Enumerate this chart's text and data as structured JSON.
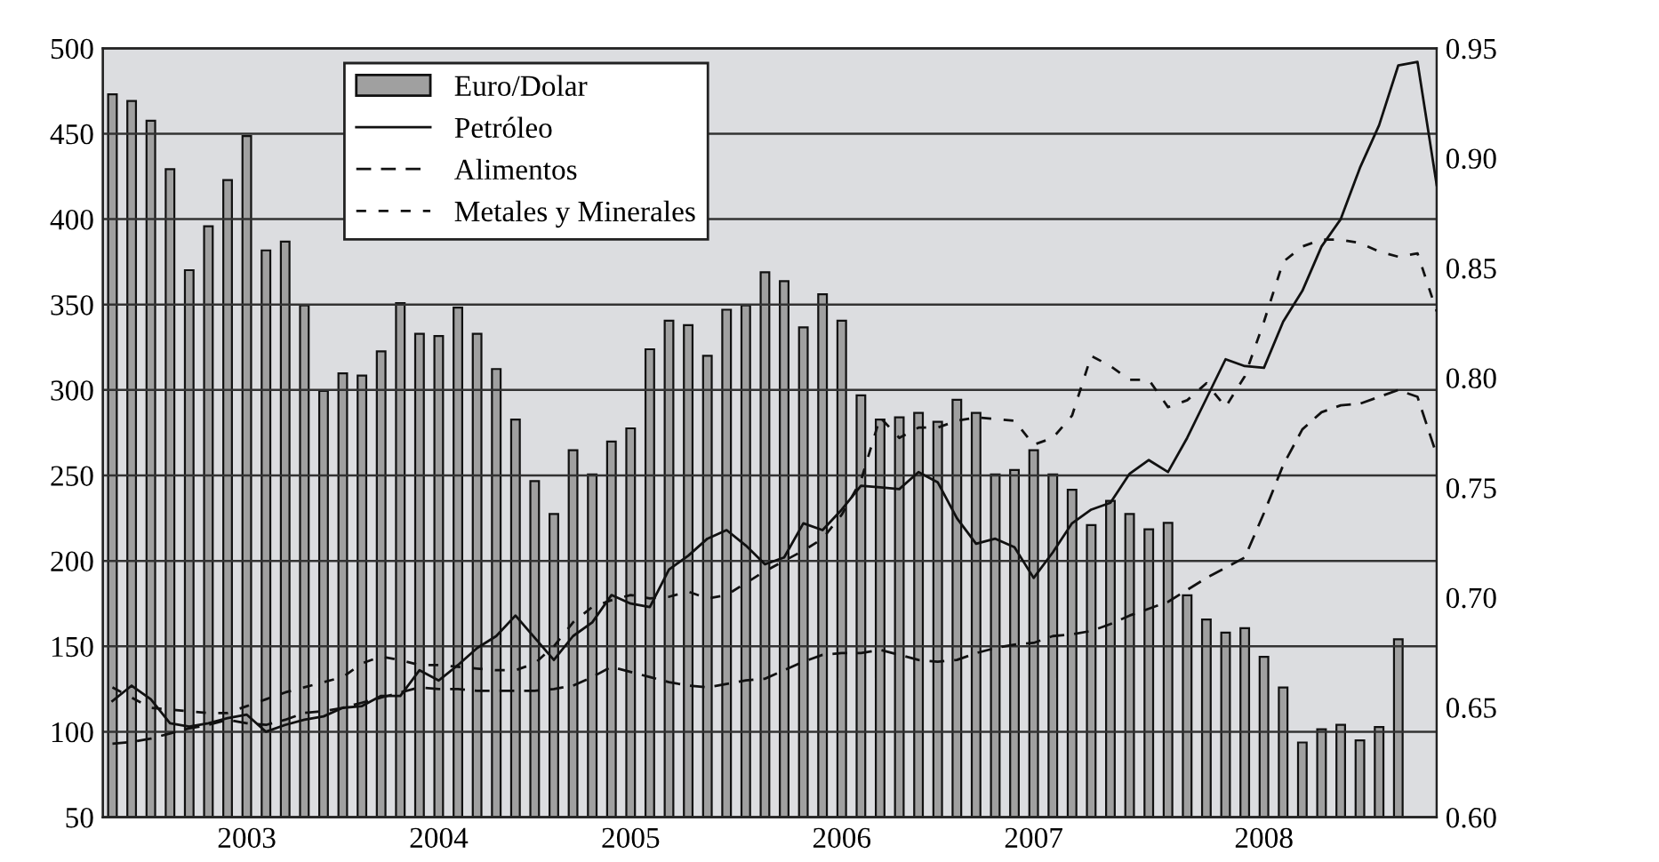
{
  "chart_data": {
    "type": "bar",
    "categories": [
      null,
      null,
      null,
      null,
      null,
      null,
      null,
      "2003",
      null,
      null,
      null,
      null,
      null,
      null,
      null,
      null,
      null,
      "2004",
      null,
      null,
      null,
      null,
      null,
      null,
      null,
      null,
      null,
      "2005",
      null,
      null,
      null,
      null,
      null,
      null,
      null,
      null,
      null,
      null,
      "2006",
      null,
      null,
      null,
      null,
      null,
      null,
      null,
      null,
      null,
      "2007",
      null,
      null,
      null,
      null,
      null,
      null,
      null,
      null,
      null,
      null,
      null,
      "2008",
      null,
      null,
      null,
      null,
      null,
      null,
      null,
      null,
      null
    ],
    "series": [
      {
        "name": "Euro/Dolar",
        "axis": "y2",
        "color": "#a0a0a0",
        "values": [
          0.929,
          0.926,
          0.917,
          0.895,
          0.849,
          0.869,
          0.89,
          0.91,
          0.858,
          0.862,
          0.833,
          0.794,
          0.802,
          0.801,
          0.812,
          0.834,
          0.82,
          0.819,
          0.832,
          0.82,
          0.804,
          0.781,
          0.753,
          0.738,
          0.767,
          0.756,
          0.771,
          0.777,
          0.813,
          0.826,
          0.824,
          0.81,
          0.831,
          0.833,
          0.848,
          0.844,
          0.823,
          0.838,
          0.826,
          0.792,
          0.781,
          0.782,
          0.784,
          0.78,
          0.79,
          0.784,
          0.756,
          0.758,
          0.767,
          0.756,
          0.749,
          0.733,
          0.744,
          0.738,
          0.731,
          0.734,
          0.701,
          0.69,
          0.684,
          0.686,
          0.673,
          0.659,
          0.634,
          0.64,
          0.642,
          0.635,
          0.641,
          0.681,
          null,
          null
        ]
      },
      {
        "name": "Petróleo",
        "type": "line",
        "line_style": "solid",
        "color": "#111111",
        "values": [
          118,
          127,
          119,
          105,
          103,
          105,
          108,
          110,
          100,
          104,
          107,
          109,
          114,
          115,
          121,
          121,
          136,
          130,
          139,
          149,
          156,
          168,
          155,
          142,
          156,
          164,
          180,
          175,
          173,
          195,
          203,
          213,
          218,
          209,
          198,
          202,
          222,
          218,
          230,
          244,
          243,
          242,
          252,
          246,
          225,
          210,
          213,
          208,
          190,
          205,
          222,
          230,
          234,
          251,
          259,
          252,
          272,
          295,
          318,
          314,
          313,
          340,
          358,
          384,
          400,
          430,
          455,
          490,
          492,
          420
        ]
      },
      {
        "name": "Alimentos",
        "type": "line",
        "line_style": "dashed",
        "color": "#111111",
        "values": [
          93,
          94,
          96,
          99,
          102,
          104,
          107,
          105,
          104,
          107,
          111,
          112,
          114,
          117,
          120,
          123,
          126,
          125,
          125,
          124,
          124,
          124,
          124,
          125,
          127,
          132,
          138,
          135,
          132,
          129,
          127,
          126,
          128,
          130,
          131,
          136,
          141,
          145,
          146,
          146,
          148,
          145,
          142,
          141,
          142,
          146,
          149,
          151,
          152,
          156,
          157,
          159,
          163,
          168,
          172,
          176,
          183,
          190,
          196,
          202,
          228,
          256,
          277,
          287,
          291,
          292,
          296,
          300,
          296,
          262
        ]
      },
      {
        "name": "Metales y Minerales",
        "type": "line",
        "line_style": "dashed",
        "color": "#111111",
        "values": [
          126,
          120,
          114,
          113,
          112,
          111,
          111,
          115,
          119,
          123,
          126,
          129,
          132,
          140,
          144,
          142,
          139,
          139,
          138,
          137,
          136,
          136,
          140,
          150,
          164,
          173,
          177,
          180,
          178,
          179,
          182,
          178,
          180,
          187,
          194,
          200,
          206,
          213,
          227,
          247,
          284,
          272,
          278,
          278,
          282,
          284,
          283,
          282,
          268,
          272,
          285,
          320,
          314,
          306,
          306,
          290,
          294,
          304,
          290,
          308,
          340,
          375,
          384,
          388,
          388,
          386,
          381,
          378,
          380,
          346
        ]
      }
    ],
    "ylim": [
      50,
      500
    ],
    "yticks": [
      50,
      100,
      150,
      200,
      250,
      300,
      350,
      400,
      450,
      500
    ],
    "y2lim": [
      0.6,
      0.95
    ],
    "y2ticks": [
      {
        "value": 0.6,
        "label": "0.60"
      },
      {
        "value": 0.65,
        "label": "0.65"
      },
      {
        "value": 0.7,
        "label": "0.70"
      },
      {
        "value": 0.75,
        "label": "0.75"
      },
      {
        "value": 0.8,
        "label": "0.80"
      },
      {
        "value": 0.85,
        "label": "0.85"
      },
      {
        "value": 0.9,
        "label": "0.90"
      },
      {
        "value": 0.95,
        "label": "0.95"
      }
    ],
    "grid": "y",
    "legend": "top left"
  }
}
